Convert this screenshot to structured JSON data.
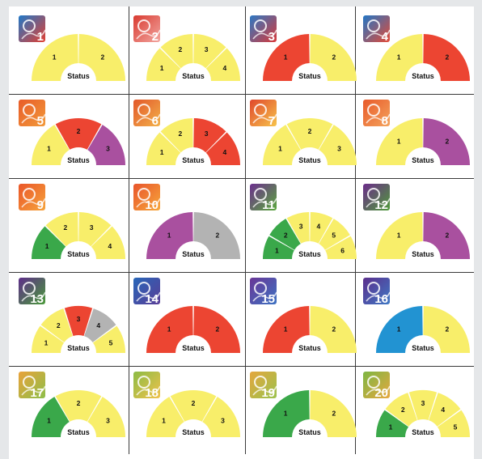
{
  "colors": {
    "yellow": "#f8ee6a",
    "red": "#ec4532",
    "purple": "#a9509f",
    "green": "#3aa84a",
    "gray": "#b3b3b3",
    "blue": "#2293d2"
  },
  "center_label": "Status",
  "panels": [
    {
      "number": "1",
      "icon": "face-profile-icon",
      "badge_colors": [
        "#1f78c8",
        "#e33f31"
      ],
      "segments": [
        {
          "label": "1",
          "color": "yellow"
        },
        {
          "label": "2",
          "color": "yellow"
        }
      ]
    },
    {
      "number": "2",
      "icon": "tree-ring-icon",
      "badge_colors": [
        "#d93a30",
        "#f2a6a0"
      ],
      "segments": [
        {
          "label": "1",
          "color": "yellow"
        },
        {
          "label": "2",
          "color": "yellow"
        },
        {
          "label": "3",
          "color": "yellow"
        },
        {
          "label": "4",
          "color": "yellow"
        }
      ]
    },
    {
      "number": "3",
      "icon": "person-factory-icon",
      "badge_colors": [
        "#2c79c4",
        "#d8393a"
      ],
      "segments": [
        {
          "label": "1",
          "color": "red"
        },
        {
          "label": "2",
          "color": "yellow"
        }
      ]
    },
    {
      "number": "4",
      "icon": "tree-cycle-icon",
      "badge_colors": [
        "#2176c6",
        "#e44a36"
      ],
      "segments": [
        {
          "label": "1",
          "color": "yellow"
        },
        {
          "label": "2",
          "color": "red"
        }
      ]
    },
    {
      "number": "5",
      "icon": "forest-fire-icon",
      "badge_colors": [
        "#e85b28",
        "#f29a3a"
      ],
      "segments": [
        {
          "label": "1",
          "color": "yellow"
        },
        {
          "label": "2",
          "color": "red"
        },
        {
          "label": "3",
          "color": "purple"
        }
      ]
    },
    {
      "number": "6",
      "icon": "fish-icon",
      "badge_colors": [
        "#e2572a",
        "#f3b14a"
      ],
      "segments": [
        {
          "label": "1",
          "color": "yellow"
        },
        {
          "label": "2",
          "color": "yellow"
        },
        {
          "label": "3",
          "color": "red"
        },
        {
          "label": "4",
          "color": "red"
        }
      ]
    },
    {
      "number": "7",
      "icon": "checkbox-icon",
      "badge_colors": [
        "#e0472c",
        "#f7c34a"
      ],
      "segments": [
        {
          "label": "1",
          "color": "yellow"
        },
        {
          "label": "2",
          "color": "yellow"
        },
        {
          "label": "3",
          "color": "yellow"
        }
      ]
    },
    {
      "number": "8",
      "icon": "landscape-icon",
      "badge_colors": [
        "#e85a2a",
        "#f4a35c"
      ],
      "segments": [
        {
          "label": "1",
          "color": "yellow"
        },
        {
          "label": "2",
          "color": "purple"
        }
      ]
    },
    {
      "number": "9",
      "icon": "hands-icon",
      "badge_colors": [
        "#ea5528",
        "#f6a43c"
      ],
      "segments": [
        {
          "label": "1",
          "color": "green"
        },
        {
          "label": "2",
          "color": "yellow"
        },
        {
          "label": "3",
          "color": "yellow"
        },
        {
          "label": "4",
          "color": "yellow"
        }
      ]
    },
    {
      "number": "10",
      "icon": "bubbles-icon",
      "badge_colors": [
        "#e8542b",
        "#f7a83b"
      ],
      "segments": [
        {
          "label": "1",
          "color": "purple"
        },
        {
          "label": "2",
          "color": "gray"
        }
      ]
    },
    {
      "number": "11",
      "icon": "grass-icon",
      "badge_colors": [
        "#6c2f8e",
        "#5aa83c"
      ],
      "segments": [
        {
          "label": "1",
          "color": "green"
        },
        {
          "label": "2",
          "color": "green"
        },
        {
          "label": "3",
          "color": "yellow"
        },
        {
          "label": "4",
          "color": "yellow"
        },
        {
          "label": "5",
          "color": "yellow"
        },
        {
          "label": "6",
          "color": "yellow"
        }
      ]
    },
    {
      "number": "12",
      "icon": "animal-icon",
      "badge_colors": [
        "#6b2b8a",
        "#4f9c3a"
      ],
      "segments": [
        {
          "label": "1",
          "color": "yellow"
        },
        {
          "label": "2",
          "color": "purple"
        }
      ]
    },
    {
      "number": "13",
      "icon": "globe-grid-icon",
      "badge_colors": [
        "#5e2d8a",
        "#4a9a3a"
      ],
      "segments": [
        {
          "label": "1",
          "color": "yellow"
        },
        {
          "label": "2",
          "color": "yellow"
        },
        {
          "label": "3",
          "color": "red"
        },
        {
          "label": "4",
          "color": "gray"
        },
        {
          "label": "5",
          "color": "yellow"
        }
      ]
    },
    {
      "number": "14",
      "icon": "rain-drops-icon",
      "badge_colors": [
        "#2766b8",
        "#5a3e97"
      ],
      "segments": [
        {
          "label": "1",
          "color": "red"
        },
        {
          "label": "2",
          "color": "red"
        }
      ]
    },
    {
      "number": "15",
      "icon": "molecules-icon",
      "badge_colors": [
        "#6a3696",
        "#3d72c2"
      ],
      "segments": [
        {
          "label": "1",
          "color": "red"
        },
        {
          "label": "2",
          "color": "yellow"
        }
      ]
    },
    {
      "number": "16",
      "icon": "leaf-icon",
      "badge_colors": [
        "#5b2e8c",
        "#3f78c4"
      ],
      "segments": [
        {
          "label": "1",
          "color": "blue"
        },
        {
          "label": "2",
          "color": "yellow"
        }
      ]
    },
    {
      "number": "17",
      "icon": "thermometer-icon",
      "badge_colors": [
        "#e9a23a",
        "#8dbf4a"
      ],
      "segments": [
        {
          "label": "1",
          "color": "green"
        },
        {
          "label": "2",
          "color": "yellow"
        },
        {
          "label": "3",
          "color": "yellow"
        }
      ]
    },
    {
      "number": "18",
      "icon": "field-crops-icon",
      "badge_colors": [
        "#8cbb45",
        "#f0c24b"
      ],
      "segments": [
        {
          "label": "1",
          "color": "yellow"
        },
        {
          "label": "2",
          "color": "yellow"
        },
        {
          "label": "3",
          "color": "yellow"
        }
      ]
    },
    {
      "number": "19",
      "icon": "tree-roots-icon",
      "badge_colors": [
        "#e4a63e",
        "#9bc24d"
      ],
      "segments": [
        {
          "label": "1",
          "color": "green"
        },
        {
          "label": "2",
          "color": "yellow"
        }
      ]
    },
    {
      "number": "20",
      "icon": "map-icon",
      "badge_colors": [
        "#7db643",
        "#e7a83f"
      ],
      "segments": [
        {
          "label": "1",
          "color": "green"
        },
        {
          "label": "2",
          "color": "yellow"
        },
        {
          "label": "3",
          "color": "yellow"
        },
        {
          "label": "4",
          "color": "yellow"
        },
        {
          "label": "5",
          "color": "yellow"
        }
      ]
    }
  ]
}
